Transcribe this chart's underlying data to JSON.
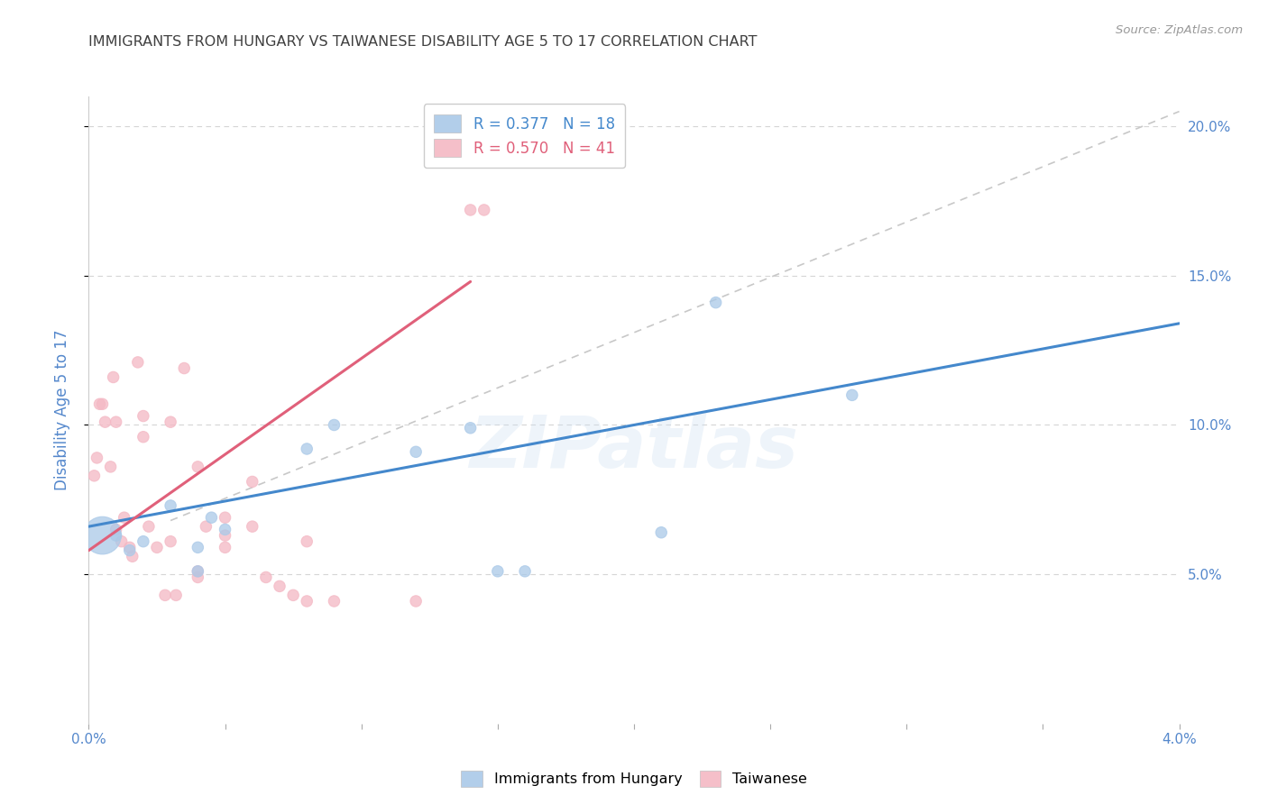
{
  "title": "IMMIGRANTS FROM HUNGARY VS TAIWANESE DISABILITY AGE 5 TO 17 CORRELATION CHART",
  "source": "Source: ZipAtlas.com",
  "ylabel": "Disability Age 5 to 17",
  "xlim": [
    0.0,
    0.04
  ],
  "ylim": [
    0.0,
    0.21
  ],
  "y_ticks_right": [
    0.05,
    0.1,
    0.15,
    0.2
  ],
  "y_tick_labels_right": [
    "5.0%",
    "10.0%",
    "15.0%",
    "20.0%"
  ],
  "legend_blue_label": "R = 0.377   N = 18",
  "legend_pink_label": "R = 0.570   N = 41",
  "blue_color": "#aac9e8",
  "pink_color": "#f4b8c4",
  "blue_line_color": "#4488cc",
  "pink_line_color": "#e0607a",
  "diagonal_color": "#c8c8c8",
  "background_color": "#ffffff",
  "grid_color": "#d5d5d5",
  "title_color": "#404040",
  "axis_tick_color": "#5588cc",
  "watermark_text": "ZIPatlas",
  "blue_line": {
    "x0": 0.0,
    "y0": 0.066,
    "x1": 0.04,
    "y1": 0.134
  },
  "pink_line": {
    "x0": 0.0,
    "y0": 0.058,
    "x1": 0.014,
    "y1": 0.148
  },
  "diag_line": {
    "x0": 0.003,
    "y0": 0.068,
    "x1": 0.04,
    "y1": 0.205
  },
  "blue_scatter": [
    [
      0.0005,
      0.063
    ],
    [
      0.001,
      0.063
    ],
    [
      0.0015,
      0.058
    ],
    [
      0.002,
      0.061
    ],
    [
      0.003,
      0.073
    ],
    [
      0.004,
      0.059
    ],
    [
      0.004,
      0.051
    ],
    [
      0.0045,
      0.069
    ],
    [
      0.005,
      0.065
    ],
    [
      0.008,
      0.092
    ],
    [
      0.009,
      0.1
    ],
    [
      0.012,
      0.091
    ],
    [
      0.014,
      0.099
    ],
    [
      0.015,
      0.051
    ],
    [
      0.016,
      0.051
    ],
    [
      0.021,
      0.064
    ],
    [
      0.023,
      0.141
    ],
    [
      0.028,
      0.11
    ]
  ],
  "blue_sizes": [
    900,
    80,
    80,
    80,
    80,
    80,
    80,
    80,
    80,
    80,
    80,
    80,
    80,
    80,
    80,
    80,
    80,
    80
  ],
  "pink_scatter": [
    [
      0.0002,
      0.083
    ],
    [
      0.0003,
      0.089
    ],
    [
      0.0004,
      0.107
    ],
    [
      0.0005,
      0.107
    ],
    [
      0.0006,
      0.101
    ],
    [
      0.0008,
      0.086
    ],
    [
      0.0009,
      0.116
    ],
    [
      0.001,
      0.065
    ],
    [
      0.001,
      0.101
    ],
    [
      0.0012,
      0.061
    ],
    [
      0.0013,
      0.069
    ],
    [
      0.0015,
      0.059
    ],
    [
      0.0016,
      0.056
    ],
    [
      0.0018,
      0.121
    ],
    [
      0.002,
      0.103
    ],
    [
      0.002,
      0.096
    ],
    [
      0.0022,
      0.066
    ],
    [
      0.0025,
      0.059
    ],
    [
      0.0028,
      0.043
    ],
    [
      0.003,
      0.101
    ],
    [
      0.003,
      0.061
    ],
    [
      0.0032,
      0.043
    ],
    [
      0.0035,
      0.119
    ],
    [
      0.004,
      0.086
    ],
    [
      0.004,
      0.049
    ],
    [
      0.004,
      0.051
    ],
    [
      0.0043,
      0.066
    ],
    [
      0.005,
      0.063
    ],
    [
      0.005,
      0.069
    ],
    [
      0.005,
      0.059
    ],
    [
      0.006,
      0.081
    ],
    [
      0.006,
      0.066
    ],
    [
      0.0065,
      0.049
    ],
    [
      0.007,
      0.046
    ],
    [
      0.0075,
      0.043
    ],
    [
      0.008,
      0.041
    ],
    [
      0.008,
      0.061
    ],
    [
      0.009,
      0.041
    ],
    [
      0.012,
      0.041
    ],
    [
      0.014,
      0.172
    ],
    [
      0.0145,
      0.172
    ]
  ],
  "pink_sizes": [
    80,
    80,
    80,
    80,
    80,
    80,
    80,
    80,
    80,
    80,
    80,
    80,
    80,
    80,
    80,
    80,
    80,
    80,
    80,
    80,
    80,
    80,
    80,
    80,
    80,
    80,
    80,
    80,
    80,
    80,
    80,
    80,
    80,
    80,
    80,
    80,
    80,
    80,
    80,
    80,
    80
  ]
}
